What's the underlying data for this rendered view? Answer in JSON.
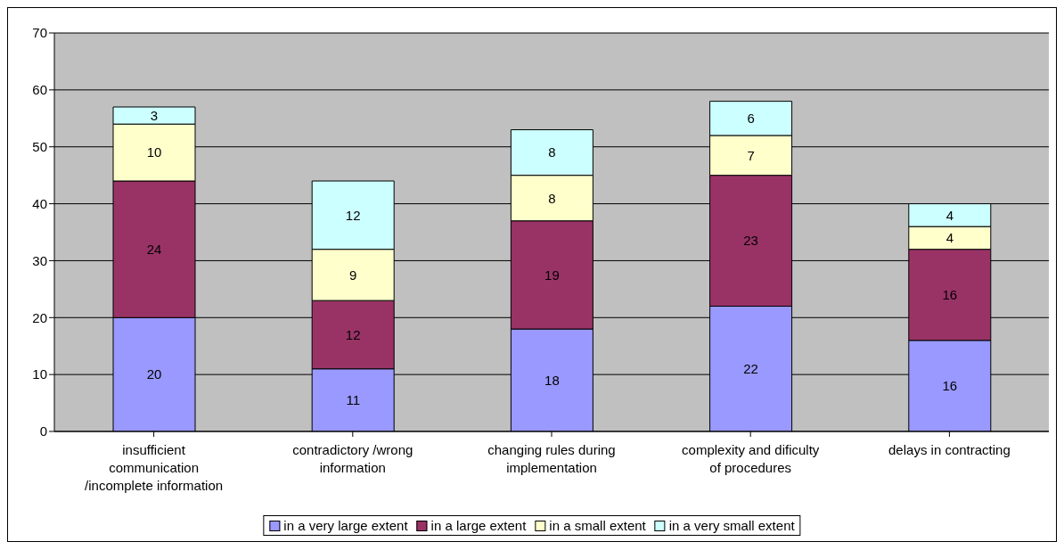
{
  "chart_data": {
    "type": "bar",
    "stacked": true,
    "categories": [
      "insufficient communication /incomplete information",
      "contradictory /wrong information",
      "changing rules during implementation",
      "complexity and dificulty of procedures",
      "delays in contracting"
    ],
    "series": [
      {
        "name": "in a very large extent",
        "color": "#9999ff",
        "values": [
          20,
          11,
          18,
          22,
          16
        ]
      },
      {
        "name": "in a large extent",
        "color": "#993366",
        "values": [
          24,
          12,
          19,
          23,
          16
        ]
      },
      {
        "name": "in a small extent",
        "color": "#ffffcc",
        "values": [
          10,
          9,
          8,
          7,
          4
        ]
      },
      {
        "name": "in a very small extent",
        "color": "#ccffff",
        "values": [
          3,
          12,
          8,
          6,
          4
        ]
      }
    ],
    "ylim": [
      0,
      70
    ],
    "yticks": [
      0,
      10,
      20,
      30,
      40,
      50,
      60,
      70
    ],
    "grid": "y",
    "legend": "bottom",
    "data_labels": true
  }
}
